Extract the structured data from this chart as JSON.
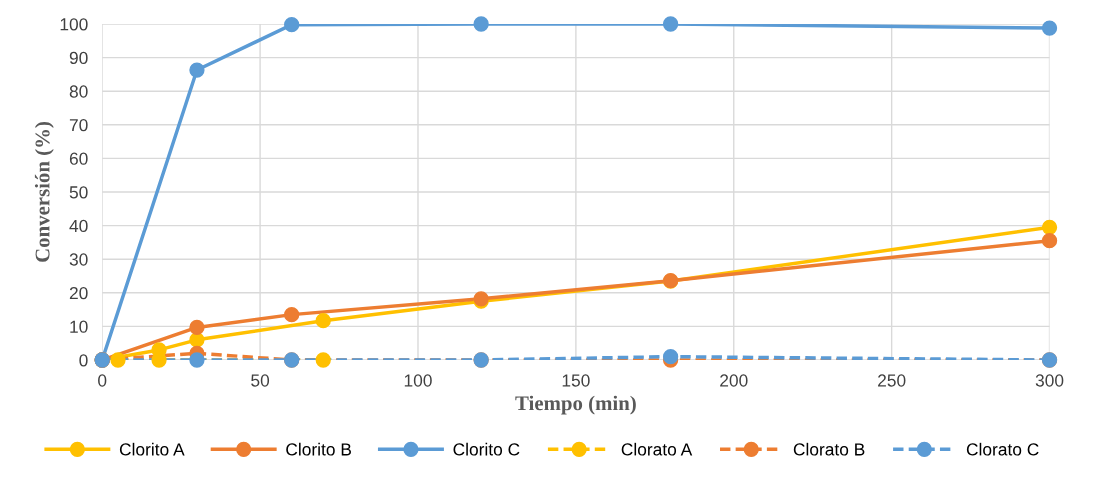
{
  "chart_data": {
    "type": "line",
    "xlabel": "Tiempo (min)",
    "ylabel": "Conversión (%)",
    "xlim": [
      0,
      300
    ],
    "xticks": [
      0,
      50,
      100,
      150,
      200,
      250,
      300
    ],
    "ylim": [
      0,
      100
    ],
    "yticks": [
      0,
      10,
      20,
      30,
      40,
      50,
      60,
      70,
      80,
      90,
      100
    ],
    "grid": true,
    "legend": "bottom",
    "marker": "circle",
    "series": [
      {
        "name": "Clorito A",
        "color": "#ffc000",
        "line_style": "solid",
        "x": [
          0,
          18,
          30,
          70,
          120,
          180,
          300
        ],
        "values": [
          0,
          3,
          6,
          11.7,
          17.5,
          23.5,
          39.5
        ]
      },
      {
        "name": "Clorito B",
        "color": "#ed7d31",
        "line_style": "solid",
        "x": [
          0,
          30,
          60,
          120,
          180,
          300
        ],
        "values": [
          0,
          9.7,
          13.5,
          18.2,
          23.6,
          35.5
        ]
      },
      {
        "name": "Clorito C",
        "color": "#5b9bd5",
        "line_style": "solid",
        "x": [
          0,
          30,
          60,
          120,
          180,
          300
        ],
        "values": [
          0,
          86.3,
          99.8,
          100,
          100,
          98.8
        ]
      },
      {
        "name": "Clorato A",
        "color": "#ffc000",
        "line_style": "dashed",
        "x": [
          5,
          18,
          70
        ],
        "values": [
          0,
          0,
          0
        ]
      },
      {
        "name": "Clorato B",
        "color": "#ed7d31",
        "line_style": "dashed",
        "x": [
          0,
          30,
          60,
          120,
          180,
          300
        ],
        "values": [
          0,
          2,
          0,
          0,
          0,
          0
        ]
      },
      {
        "name": "Clorato C",
        "color": "#5b9bd5",
        "line_style": "dashed",
        "x": [
          0,
          30,
          60,
          120,
          180,
          300
        ],
        "values": [
          0,
          0,
          0,
          0,
          1,
          0
        ]
      }
    ]
  }
}
